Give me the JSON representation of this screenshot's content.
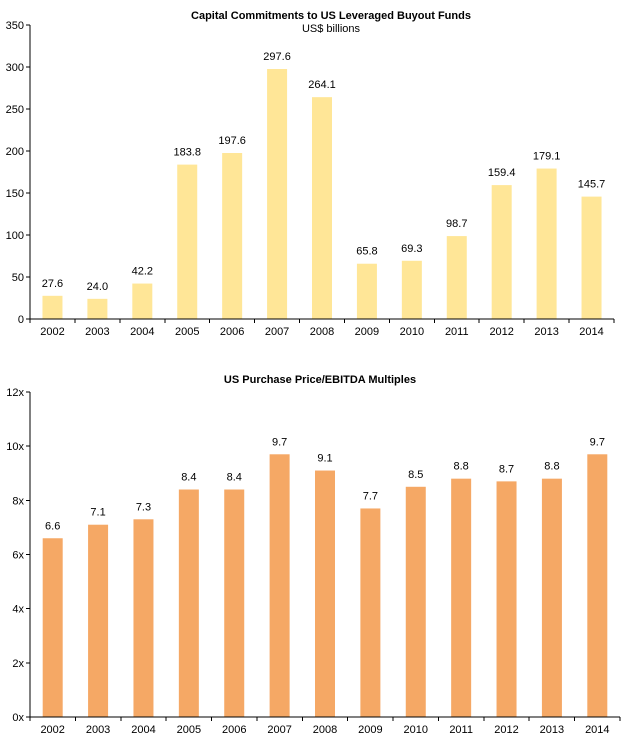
{
  "chart_data": [
    {
      "type": "bar",
      "title": "Capital Commitments to US Leveraged Buyout Funds",
      "subtitle": "US$ billions",
      "xlabel": "",
      "ylabel": "",
      "categories": [
        "2002",
        "2003",
        "2004",
        "2005",
        "2006",
        "2007",
        "2008",
        "2009",
        "2010",
        "2011",
        "2012",
        "2013",
        "2014"
      ],
      "values": [
        27.6,
        24.0,
        42.2,
        183.8,
        197.6,
        297.6,
        264.1,
        65.8,
        69.3,
        98.7,
        159.4,
        179.1,
        145.7
      ],
      "value_labels": [
        "27.6",
        "24.0",
        "42.2",
        "183.8",
        "197.6",
        "297.6",
        "264.1",
        "65.8",
        "69.3",
        "98.7",
        "159.4",
        "179.1",
        "145.7"
      ],
      "ylim": [
        0,
        350
      ],
      "yticks": [
        0,
        50,
        100,
        150,
        200,
        250,
        300,
        350
      ],
      "ytick_labels": [
        "0",
        "50",
        "100",
        "150",
        "200",
        "250",
        "300",
        "350"
      ],
      "grid": false,
      "bar_color": "#FFE697"
    },
    {
      "type": "bar",
      "title": "US Purchase Price/EBITDA Multiples",
      "subtitle": "",
      "xlabel": "",
      "ylabel": "",
      "categories": [
        "2002",
        "2003",
        "2004",
        "2005",
        "2006",
        "2007",
        "2008",
        "2009",
        "2010",
        "2011",
        "2012",
        "2013",
        "2014"
      ],
      "values": [
        6.6,
        7.1,
        7.3,
        8.4,
        8.4,
        9.7,
        9.1,
        7.7,
        8.5,
        8.8,
        8.7,
        8.8,
        9.7
      ],
      "value_labels": [
        "6.6",
        "7.1",
        "7.3",
        "8.4",
        "8.4",
        "9.7",
        "9.1",
        "7.7",
        "8.5",
        "8.8",
        "8.7",
        "8.8",
        "9.7"
      ],
      "ylim": [
        0,
        12
      ],
      "yticks": [
        0,
        2,
        4,
        6,
        8,
        10,
        12
      ],
      "ytick_labels": [
        "0x",
        "2x",
        "4x",
        "6x",
        "8x",
        "10x",
        "12x"
      ],
      "grid": false,
      "bar_color": "#F5A865"
    }
  ]
}
